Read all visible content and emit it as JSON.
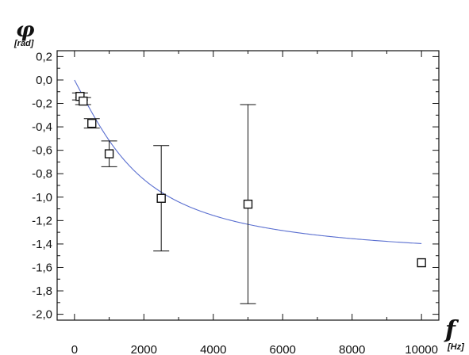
{
  "chart_data": {
    "type": "scatter",
    "title": "",
    "ylabel": {
      "symbol": "φ",
      "unit": "[rad]"
    },
    "xlabel": {
      "symbol": "f",
      "unit": "[Hz]"
    },
    "xlim": [
      -500,
      10500
    ],
    "ylim": [
      -2.05,
      0.25
    ],
    "x_ticks": [
      0,
      2000,
      4000,
      6000,
      8000,
      10000
    ],
    "x_tick_labels": [
      "0",
      "2000",
      "4000",
      "6000",
      "8000",
      "10000"
    ],
    "y_ticks": [
      0.2,
      0.0,
      -0.2,
      -0.4,
      -0.6,
      -0.8,
      -1.0,
      -1.2,
      -1.4,
      -1.6,
      -1.8,
      -2.0
    ],
    "y_tick_labels": [
      "0,2",
      "0,0",
      "-0,2",
      "-0,4",
      "-0,6",
      "-0,8",
      "-1,0",
      "-1,2",
      "-1,4",
      "-1,6",
      "-1,8",
      "-2,0"
    ],
    "grid": false,
    "series": [
      {
        "type": "scatter",
        "marker": "open-square",
        "color": "#111111",
        "points": [
          {
            "x": 160,
            "y": -0.14,
            "err": 0.03
          },
          {
            "x": 250,
            "y": -0.18,
            "err": 0.03
          },
          {
            "x": 500,
            "y": -0.37,
            "err": 0.04
          },
          {
            "x": 1000,
            "y": -0.63,
            "err": 0.11
          },
          {
            "x": 2500,
            "y": -1.01,
            "err": 0.45
          },
          {
            "x": 5000,
            "y": -1.06,
            "err": 0.85
          },
          {
            "x": 10000,
            "y": -1.56
          }
        ]
      },
      {
        "type": "line",
        "color": "#5a6fd0",
        "fit": "y = -arctan(x / 1760)",
        "x_range": [
          0,
          10000
        ]
      }
    ]
  }
}
